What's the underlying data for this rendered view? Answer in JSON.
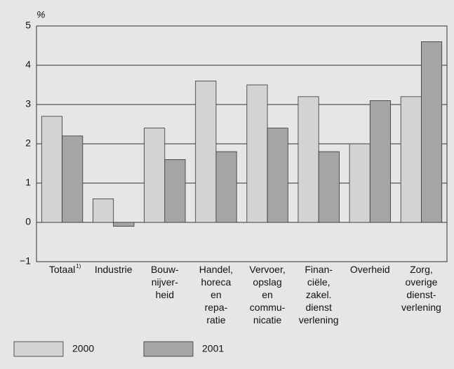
{
  "chart_data": {
    "type": "bar",
    "y_label": "%",
    "categories": [
      "Totaal",
      "Industrie",
      "Bouw-\nnijver-\nheid",
      "Handel,\nhoreca\nen\nrepa-\nratie",
      "Vervoer,\nopslag\nen\ncommu-\nnicatie",
      "Finan-\nciële,\nzakel.\ndienst\nverlening",
      "Overheid",
      "Zorg,\noverige\ndienst-\nverlening"
    ],
    "category_superscripts": [
      "1)",
      null,
      null,
      null,
      null,
      null,
      null,
      null
    ],
    "series": [
      {
        "name": "2000",
        "color": "#d3d3d3",
        "values": [
          2.7,
          0.6,
          2.4,
          3.6,
          3.5,
          3.2,
          2.0,
          3.2
        ]
      },
      {
        "name": "2001",
        "color": "#a5a5a5",
        "values": [
          2.2,
          -0.1,
          1.6,
          1.8,
          2.4,
          1.8,
          3.1,
          4.6
        ]
      }
    ],
    "ylim": [
      -1,
      5
    ],
    "yticks": [
      {
        "value": -1,
        "label": "−1"
      },
      0,
      1,
      2,
      3,
      4,
      5
    ],
    "grid": true,
    "legend": "bottom"
  }
}
